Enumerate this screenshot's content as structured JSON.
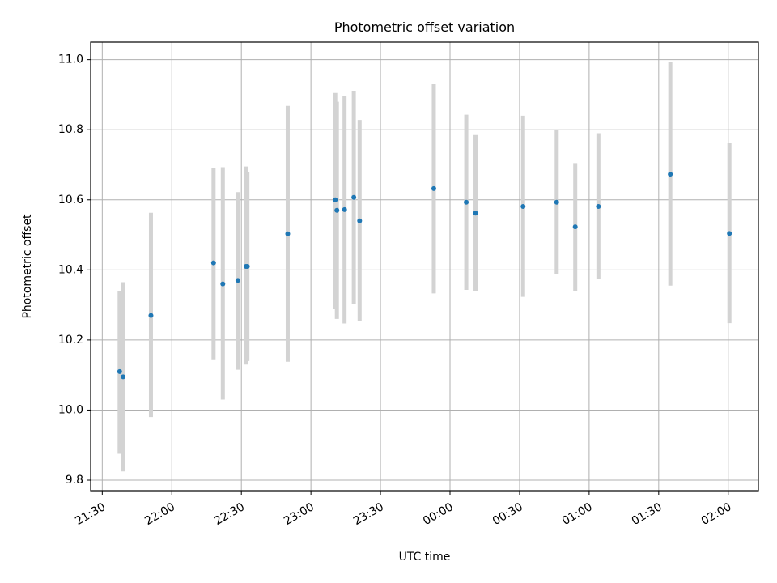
{
  "chart_data": {
    "type": "scatter",
    "title": "Photometric offset variation",
    "xlabel": "UTC time",
    "ylabel": "Photometric offset",
    "x_ticks": [
      "21:30",
      "22:00",
      "22:30",
      "23:00",
      "23:30",
      "00:00",
      "00:30",
      "01:00",
      "01:30",
      "02:00"
    ],
    "x_tick_minutes": [
      0,
      30,
      60,
      90,
      120,
      150,
      180,
      210,
      240,
      270
    ],
    "x_axis_note": "x values are minutes after 21:30 UTC",
    "xlim": [
      -5,
      283
    ],
    "ylim": [
      9.77,
      11.05
    ],
    "y_ticks": [
      9.8,
      10.0,
      10.2,
      10.4,
      10.6,
      10.8,
      11.0
    ],
    "grid": true,
    "point_color": "#1f77b4",
    "errorbar_color": "#d3d3d3",
    "points": [
      {
        "t": 7.5,
        "y": 10.11,
        "lo": 9.875,
        "hi": 10.34
      },
      {
        "t": 9.0,
        "y": 10.095,
        "lo": 9.825,
        "hi": 10.365
      },
      {
        "t": 21.0,
        "y": 10.27,
        "lo": 9.98,
        "hi": 10.563
      },
      {
        "t": 48.0,
        "y": 10.42,
        "lo": 10.145,
        "hi": 10.69
      },
      {
        "t": 52.0,
        "y": 10.36,
        "lo": 10.03,
        "hi": 10.693
      },
      {
        "t": 58.5,
        "y": 10.37,
        "lo": 10.115,
        "hi": 10.622
      },
      {
        "t": 62.0,
        "y": 10.41,
        "lo": 10.13,
        "hi": 10.695
      },
      {
        "t": 62.6,
        "y": 10.41,
        "lo": 10.14,
        "hi": 10.68
      },
      {
        "t": 80.0,
        "y": 10.503,
        "lo": 10.138,
        "hi": 10.868
      },
      {
        "t": 100.5,
        "y": 10.6,
        "lo": 10.29,
        "hi": 10.905
      },
      {
        "t": 101.2,
        "y": 10.57,
        "lo": 10.26,
        "hi": 10.88
      },
      {
        "t": 104.5,
        "y": 10.572,
        "lo": 10.247,
        "hi": 10.897
      },
      {
        "t": 108.5,
        "y": 10.607,
        "lo": 10.303,
        "hi": 10.91
      },
      {
        "t": 111.0,
        "y": 10.54,
        "lo": 10.253,
        "hi": 10.828
      },
      {
        "t": 143.0,
        "y": 10.632,
        "lo": 10.333,
        "hi": 10.93
      },
      {
        "t": 157.0,
        "y": 10.593,
        "lo": 10.343,
        "hi": 10.843
      },
      {
        "t": 161.0,
        "y": 10.562,
        "lo": 10.34,
        "hi": 10.785
      },
      {
        "t": 181.5,
        "y": 10.581,
        "lo": 10.323,
        "hi": 10.84
      },
      {
        "t": 196.0,
        "y": 10.593,
        "lo": 10.388,
        "hi": 10.8
      },
      {
        "t": 204.0,
        "y": 10.523,
        "lo": 10.34,
        "hi": 10.705
      },
      {
        "t": 214.0,
        "y": 10.581,
        "lo": 10.373,
        "hi": 10.79
      },
      {
        "t": 245.0,
        "y": 10.673,
        "lo": 10.355,
        "hi": 10.993
      },
      {
        "t": 270.5,
        "y": 10.504,
        "lo": 10.248,
        "hi": 10.762
      }
    ]
  }
}
